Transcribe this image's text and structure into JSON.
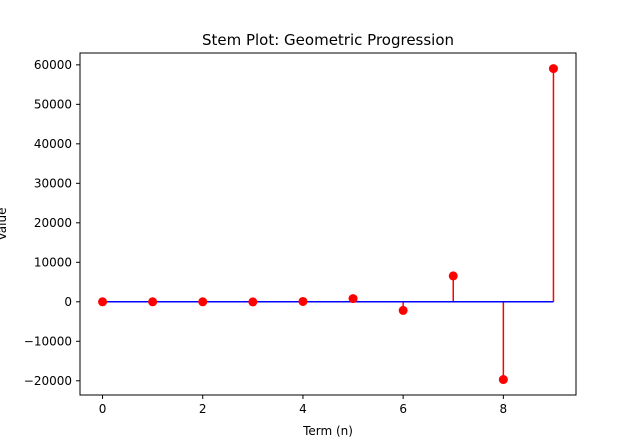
{
  "chart_data": {
    "type": "stem",
    "title": "Stem Plot: Geometric Progression",
    "xlabel": "Term (n)",
    "ylabel": "Value",
    "x": [
      0,
      1,
      2,
      3,
      4,
      5,
      6,
      7,
      8,
      9
    ],
    "values": [
      1,
      -3,
      9,
      -27,
      81,
      810,
      -2187,
      6561,
      -19683,
      59049
    ],
    "xlim": [
      -0.45,
      9.45
    ],
    "ylim": [
      -23600,
      63000
    ],
    "xticks": [
      0,
      2,
      4,
      6,
      8
    ],
    "yticks": [
      -20000,
      -10000,
      0,
      10000,
      20000,
      30000,
      40000,
      50000,
      60000
    ],
    "grid": false,
    "colors": {
      "stem": "#ff0000",
      "marker": "#ff0000",
      "baseline": "#0000ff",
      "axes": "#000000"
    }
  }
}
